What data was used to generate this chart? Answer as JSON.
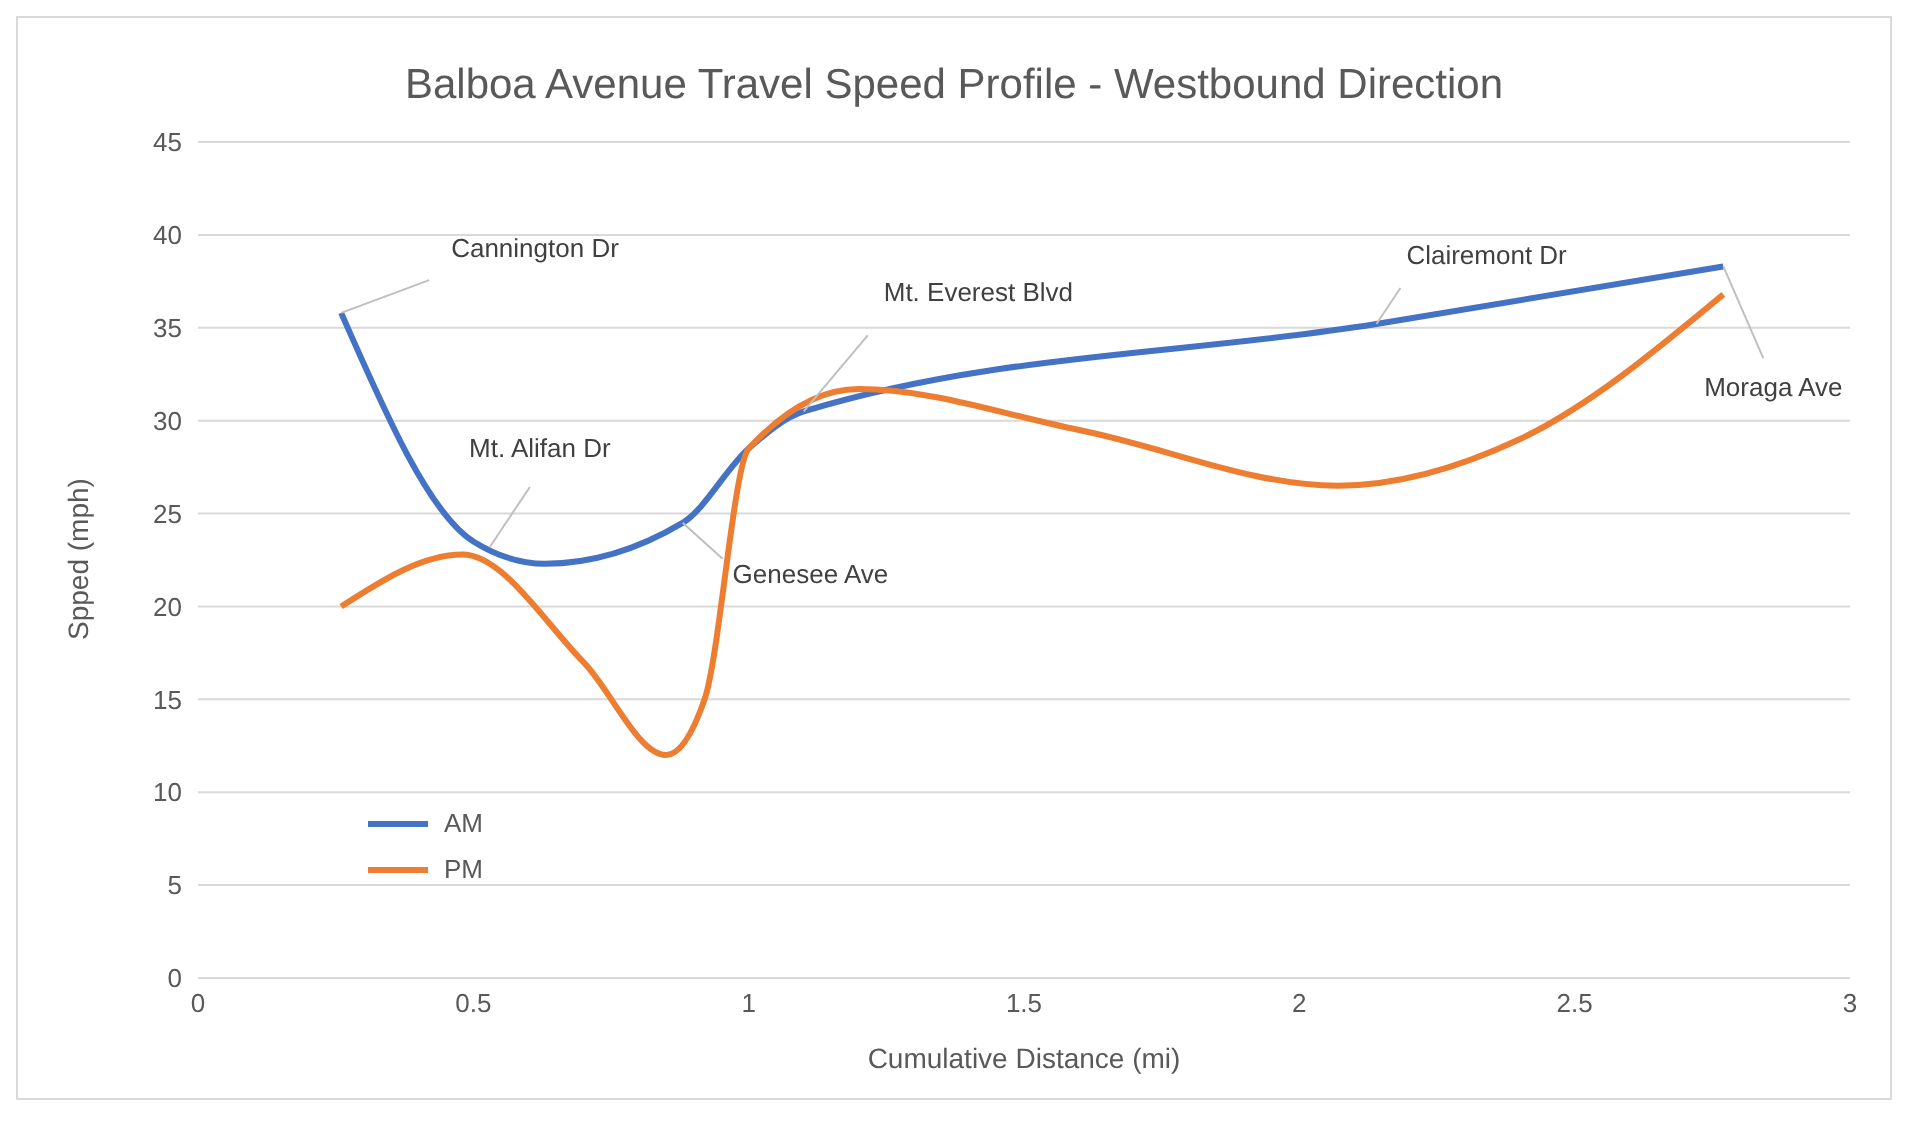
{
  "chart_data": {
    "type": "line",
    "title": "Balboa Avenue Travel Speed Profile - Westbound Direction",
    "xlabel": "Cumulative Distance (mi)",
    "ylabel": "Spped (mph)",
    "xlim": [
      0,
      3
    ],
    "xticks": [
      0,
      0.5,
      1,
      1.5,
      2,
      2.5,
      3
    ],
    "ylim": [
      0,
      45
    ],
    "yticks": [
      0,
      5,
      10,
      15,
      20,
      25,
      30,
      35,
      40,
      45
    ],
    "grid": "y",
    "legend": "bottom left",
    "marker": "none",
    "line_style": "solid",
    "series": [
      {
        "name": "AM",
        "color": "#4472c4",
        "x": [
          0.26,
          0.5,
          0.63,
          0.88,
          1.0,
          1.1,
          2.14,
          2.77
        ],
        "values": [
          35.8,
          23.5,
          22.3,
          24.5,
          28.5,
          30.5,
          35.2,
          38.3
        ]
      },
      {
        "name": "PM",
        "color": "#ed7d31",
        "x": [
          0.26,
          0.48,
          0.7,
          0.85,
          0.92,
          1.0,
          1.2,
          1.6,
          2.07,
          2.4,
          2.77
        ],
        "values": [
          20,
          22.8,
          17,
          12,
          15,
          28.5,
          31.7,
          29.5,
          26.5,
          29,
          36.8
        ]
      }
    ],
    "annotations": [
      {
        "text": "Cannington Dr",
        "x": 0.26,
        "y": 35.8
      },
      {
        "text": "Mt. Alifan Dr",
        "x": 0.53,
        "y": 23.2
      },
      {
        "text": "Genesee Ave",
        "x": 0.88,
        "y": 24.5
      },
      {
        "text": "Mt. Everest Blvd",
        "x": 1.1,
        "y": 30.5
      },
      {
        "text": "Clairemont Dr",
        "x": 2.14,
        "y": 35.2
      },
      {
        "text": "Moraga Ave",
        "x": 2.77,
        "y": 38.3
      }
    ]
  }
}
